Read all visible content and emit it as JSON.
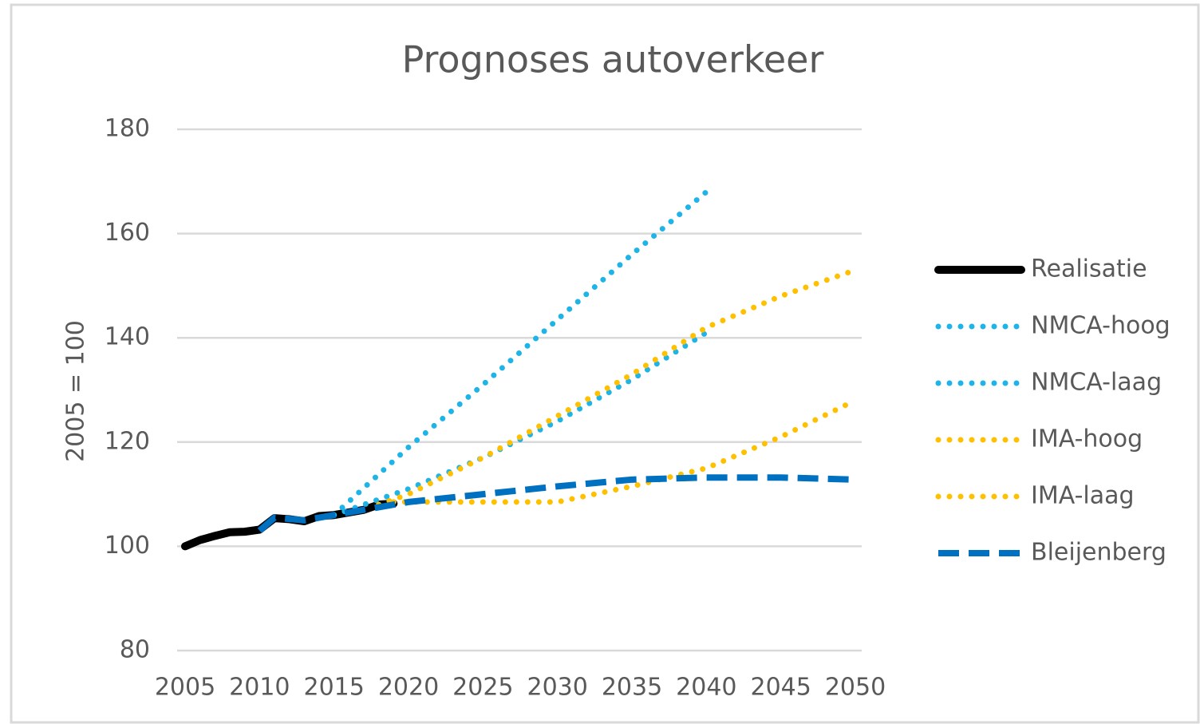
{
  "chart_data": {
    "type": "line",
    "title": "Prognoses autoverkeer",
    "y_label": "2005 = 100",
    "xlim": [
      2005,
      2050
    ],
    "xticks": [
      2005,
      2010,
      2015,
      2020,
      2025,
      2030,
      2035,
      2040,
      2045,
      2050
    ],
    "ylim": [
      80,
      180
    ],
    "yticks": [
      80,
      100,
      120,
      140,
      160,
      180
    ],
    "grid": true,
    "legend": "right",
    "series": [
      {
        "name": "Realisatie",
        "color": "#000000",
        "style": "solid",
        "x": [
          2005,
          2006,
          2007,
          2008,
          2009,
          2010,
          2011,
          2012,
          2013,
          2014,
          2015,
          2016,
          2017,
          2018,
          2019
        ],
        "values": [
          100,
          101.2,
          102,
          102.7,
          102.8,
          103.2,
          105.4,
          105.2,
          104.8,
          105.8,
          106,
          106.5,
          107,
          108,
          108.2
        ]
      },
      {
        "name": "NMCA-hoog",
        "color": "#1fb4e8",
        "style": "dotted",
        "x": [
          2015,
          2020,
          2025,
          2030,
          2035,
          2040
        ],
        "values": [
          106,
          119,
          131,
          143.5,
          156,
          168
        ]
      },
      {
        "name": "NMCA-laag",
        "color": "#1fb4e8",
        "style": "dotted",
        "x": [
          2015,
          2020,
          2025,
          2030,
          2035,
          2040
        ],
        "values": [
          106,
          111,
          117,
          124,
          132,
          141
        ]
      },
      {
        "name": "IMA-hoog",
        "color": "#ffc000",
        "style": "dotted",
        "x": [
          2018,
          2020,
          2025,
          2030,
          2035,
          2040,
          2045,
          2050
        ],
        "values": [
          108,
          110,
          117,
          125,
          133,
          142,
          148,
          153
        ]
      },
      {
        "name": "IMA-laag",
        "color": "#ffc000",
        "style": "dotted",
        "x": [
          2019,
          2025,
          2030,
          2035,
          2040,
          2045,
          2050
        ],
        "values": [
          108.5,
          108.5,
          108.5,
          111.5,
          115,
          121,
          128
        ]
      },
      {
        "name": "Bleijenberg",
        "color": "#0070c0",
        "style": "dashed",
        "x": [
          2010,
          2011,
          2013,
          2015,
          2020,
          2025,
          2030,
          2035,
          2040,
          2045,
          2050
        ],
        "values": [
          103,
          105.5,
          105,
          106,
          108.5,
          110,
          111.5,
          112.8,
          113.2,
          113.2,
          112.8
        ]
      }
    ]
  }
}
